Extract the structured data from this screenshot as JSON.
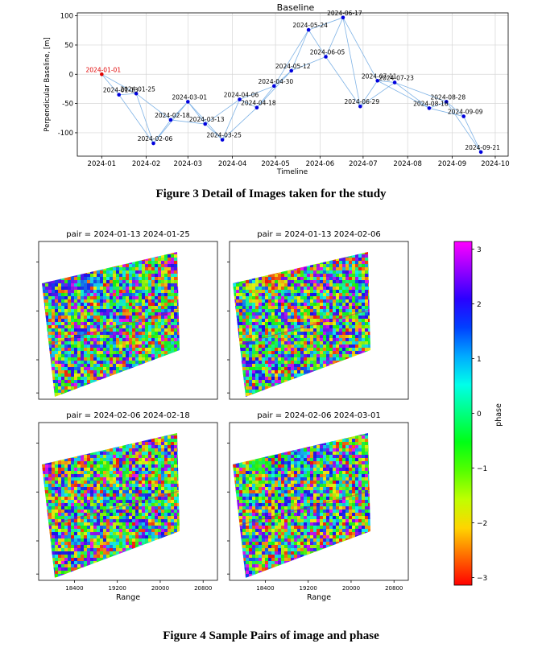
{
  "figure3": {
    "caption": "Figure 3 Detail of Images taken for the study",
    "chart_data": {
      "type": "scatter",
      "title": "Baseline",
      "xlabel": "Timeline",
      "ylabel": "Perpendicular Baseline, [m]",
      "x_ticks": [
        "2024-01",
        "2024-02",
        "2024-03",
        "2024-04",
        "2024-05",
        "2024-06",
        "2024-07",
        "2024-08",
        "2024-09",
        "2024-10"
      ],
      "y_ticks": [
        100,
        50,
        0,
        -50,
        -100
      ],
      "ylim": [
        -140,
        105
      ],
      "grid": true,
      "reference_color": "#e00000",
      "point_color": "#0000dd",
      "line_color": "#7fb3e6",
      "points": [
        {
          "date": "2024-01-01",
          "label": "2024-01-01",
          "y": 0,
          "reference": true
        },
        {
          "date": "2024-01-13",
          "label": "2024-01-13",
          "y": -35
        },
        {
          "date": "2024-01-25",
          "label": "2024-01-25",
          "y": -33
        },
        {
          "date": "2024-02-06",
          "label": "2024-02-06",
          "y": -118
        },
        {
          "date": "2024-02-18",
          "label": "2024-02-18",
          "y": -78
        },
        {
          "date": "2024-03-01",
          "label": "2024-03-01",
          "y": -47
        },
        {
          "date": "2024-03-13",
          "label": "2024-03-13",
          "y": -85
        },
        {
          "date": "2024-03-25",
          "label": "2024-03-25",
          "y": -112
        },
        {
          "date": "2024-04-06",
          "label": "2024-04-06",
          "y": -43
        },
        {
          "date": "2024-04-18",
          "label": "2024-04-18",
          "y": -57
        },
        {
          "date": "2024-04-30",
          "label": "2024-04-30",
          "y": -20
        },
        {
          "date": "2024-05-12",
          "label": "2024-05-12",
          "y": 6
        },
        {
          "date": "2024-05-24",
          "label": "2024-05-24",
          "y": 76
        },
        {
          "date": "2024-06-05",
          "label": "2024-06-05",
          "y": 30
        },
        {
          "date": "2024-06-17",
          "label": "2024-06-17",
          "y": 97
        },
        {
          "date": "2024-06-29",
          "label": "2024-06-29",
          "y": -55
        },
        {
          "date": "2024-07-11",
          "label": "2024-07-11",
          "y": -11
        },
        {
          "date": "2024-07-23",
          "label": "2024-07-23",
          "y": -14
        },
        {
          "date": "2024-08-16",
          "label": "2024-08-16",
          "y": -58
        },
        {
          "date": "2024-08-28",
          "label": "2024-08-28",
          "y": -47
        },
        {
          "date": "2024-09-09",
          "label": "2024-09-09",
          "y": -72
        },
        {
          "date": "2024-09-21",
          "label": "2024-09-21",
          "y": -133
        }
      ],
      "connections": [
        [
          "2024-01-01",
          "2024-01-13"
        ],
        [
          "2024-01-01",
          "2024-01-25"
        ],
        [
          "2024-01-13",
          "2024-01-25"
        ],
        [
          "2024-01-13",
          "2024-02-06"
        ],
        [
          "2024-01-25",
          "2024-02-06"
        ],
        [
          "2024-01-25",
          "2024-02-18"
        ],
        [
          "2024-02-06",
          "2024-02-18"
        ],
        [
          "2024-02-06",
          "2024-03-01"
        ],
        [
          "2024-02-18",
          "2024-03-01"
        ],
        [
          "2024-02-18",
          "2024-03-13"
        ],
        [
          "2024-03-01",
          "2024-03-13"
        ],
        [
          "2024-03-01",
          "2024-03-25"
        ],
        [
          "2024-03-13",
          "2024-03-25"
        ],
        [
          "2024-03-13",
          "2024-04-06"
        ],
        [
          "2024-03-25",
          "2024-04-06"
        ],
        [
          "2024-03-25",
          "2024-04-18"
        ],
        [
          "2024-04-06",
          "2024-04-18"
        ],
        [
          "2024-04-06",
          "2024-04-30"
        ],
        [
          "2024-04-18",
          "2024-04-30"
        ],
        [
          "2024-04-18",
          "2024-05-12"
        ],
        [
          "2024-04-30",
          "2024-05-12"
        ],
        [
          "2024-04-30",
          "2024-05-24"
        ],
        [
          "2024-05-12",
          "2024-05-24"
        ],
        [
          "2024-05-12",
          "2024-06-05"
        ],
        [
          "2024-05-24",
          "2024-06-05"
        ],
        [
          "2024-05-24",
          "2024-06-17"
        ],
        [
          "2024-06-05",
          "2024-06-17"
        ],
        [
          "2024-06-05",
          "2024-06-29"
        ],
        [
          "2024-06-17",
          "2024-06-29"
        ],
        [
          "2024-06-17",
          "2024-07-11"
        ],
        [
          "2024-06-29",
          "2024-07-11"
        ],
        [
          "2024-06-29",
          "2024-07-23"
        ],
        [
          "2024-07-11",
          "2024-07-23"
        ],
        [
          "2024-07-11",
          "2024-08-16"
        ],
        [
          "2024-07-23",
          "2024-08-16"
        ],
        [
          "2024-07-23",
          "2024-08-28"
        ],
        [
          "2024-08-16",
          "2024-08-28"
        ],
        [
          "2024-08-16",
          "2024-09-09"
        ],
        [
          "2024-08-28",
          "2024-09-09"
        ],
        [
          "2024-08-28",
          "2024-09-21"
        ],
        [
          "2024-09-09",
          "2024-09-21"
        ]
      ]
    }
  },
  "figure4": {
    "caption": "Figure 4 Sample Pairs of image and phase",
    "panels": [
      {
        "title": "pair = 2024-01-13 2024-01-25",
        "blobs": [
          {
            "u": 0.08,
            "v": 0.18,
            "r": 0.16,
            "phase": 2.0
          },
          {
            "u": 0.35,
            "v": 0.2,
            "r": 0.1,
            "phase": 1.3
          },
          {
            "u": 0.92,
            "v": 0.72,
            "r": 0.12,
            "phase": -0.3
          },
          {
            "u": 0.75,
            "v": 0.85,
            "r": 0.12,
            "phase": 0.8
          }
        ]
      },
      {
        "title": "pair = 2024-01-13 2024-02-06",
        "blobs": [
          {
            "u": 0.3,
            "v": 0.18,
            "r": 0.1,
            "phase": -2.6
          },
          {
            "u": 0.12,
            "v": 0.25,
            "r": 0.1,
            "phase": -1.6
          },
          {
            "u": 0.85,
            "v": 0.8,
            "r": 0.12,
            "phase": -1.8
          }
        ]
      },
      {
        "title": "pair = 2024-02-06 2024-02-18",
        "blobs": [
          {
            "u": 0.1,
            "v": 0.15,
            "r": 0.11,
            "phase": -2.2
          },
          {
            "u": 0.4,
            "v": 0.22,
            "r": 0.09,
            "phase": -1.0
          },
          {
            "u": 0.88,
            "v": 0.82,
            "r": 0.11,
            "phase": -2.6
          }
        ]
      },
      {
        "title": "pair = 2024-02-06 2024-03-01",
        "blobs": [
          {
            "u": 0.2,
            "v": 0.2,
            "r": 0.1,
            "phase": -0.6
          },
          {
            "u": 0.45,
            "v": 0.15,
            "r": 0.08,
            "phase": 1.2
          },
          {
            "u": 0.85,
            "v": 0.8,
            "r": 0.1,
            "phase": -2.3
          }
        ]
      }
    ],
    "range_label": "Range",
    "range_ticks": [
      "18400",
      "19200",
      "20000",
      "20800"
    ],
    "colorbar": {
      "label": "phase",
      "ticks": [
        "3",
        "2",
        "1",
        "0",
        "−1",
        "−2",
        "−3"
      ],
      "min": -3.14,
      "max": 3.14,
      "colormap": "hsv"
    }
  }
}
